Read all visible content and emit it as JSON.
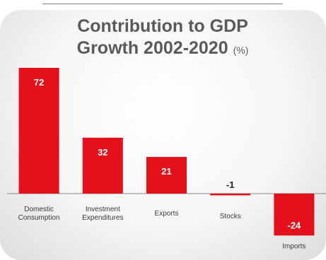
{
  "chart_data": {
    "type": "bar",
    "title_line1": "Contribution to GDP",
    "title_line2": "Growth 2002-2020",
    "title_unit": "(%)",
    "categories": [
      [
        "Domestic",
        "Consumption"
      ],
      [
        "Investment",
        "Expenditures"
      ],
      [
        "Exports"
      ],
      [
        "Stocks"
      ],
      [
        "Imports"
      ]
    ],
    "values": [
      72,
      32,
      21,
      -1,
      -24
    ],
    "value_labels": [
      "72",
      "32",
      "21",
      "-1",
      "-24"
    ],
    "bar_color": "#e4101b",
    "grid": false,
    "legend": "none"
  }
}
